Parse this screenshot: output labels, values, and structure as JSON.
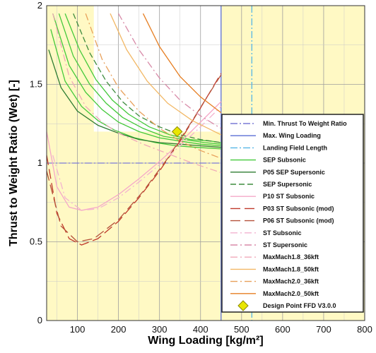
{
  "chart_data": {
    "type": "line",
    "xlabel": "Wing Loading [kg/m²]",
    "ylabel": "Thrust to Weight Ratio (Wet) [-]",
    "xlim": [
      25,
      800
    ],
    "ylim": [
      0,
      2
    ],
    "xticks": [
      "100",
      "200",
      "300",
      "400",
      "500",
      "600",
      "700",
      "800"
    ],
    "yticks": [
      "0",
      "0.5",
      "1",
      "1.5",
      "2"
    ],
    "grid": true,
    "legend_position": "bottom-right",
    "colors": {
      "feasible": "#fff9c4",
      "infeasible": "#ffffff",
      "grid": "#9e9e9e"
    },
    "constraints": {
      "min_tw": 1.0,
      "max_wing_loading": 450,
      "landing_field_length": 525
    },
    "design_point": {
      "x": 343,
      "y": 1.2
    },
    "series": [
      {
        "name": "Min. Thrust To Weight Ratio",
        "color": "#7a7ad6",
        "dash": "10,3,2,3",
        "kind": "h"
      },
      {
        "name": "Max. Wing Loading",
        "color": "#5b6fd4",
        "dash": "",
        "kind": "v"
      },
      {
        "name": "Landing Field Length",
        "color": "#56b6e6",
        "dash": "10,3,2,3",
        "kind": "v"
      },
      {
        "name": "SEP Subsonic",
        "color": "#43c93a",
        "dash": "",
        "kind": "sep",
        "curves": [
          {
            "x": [
              40,
              80,
              120,
              160,
              200,
              250,
              300,
              350,
              400,
              450
            ],
            "y": [
              1.95,
              1.62,
              1.45,
              1.34,
              1.26,
              1.2,
              1.16,
              1.14,
              1.12,
              1.11
            ]
          },
          {
            "x": [
              55,
              90,
              130,
              170,
              210,
              260,
              310,
              360,
              410,
              450
            ],
            "y": [
              1.95,
              1.68,
              1.5,
              1.38,
              1.29,
              1.22,
              1.17,
              1.15,
              1.13,
              1.12
            ]
          },
          {
            "x": [
              70,
              105,
              145,
              185,
              225,
              275,
              325,
              375,
              425,
              450
            ],
            "y": [
              1.95,
              1.72,
              1.53,
              1.4,
              1.31,
              1.23,
              1.18,
              1.15,
              1.14,
              1.13
            ]
          },
          {
            "x": [
              35,
              70,
              110,
              150,
              190,
              240,
              290,
              340,
              390,
              450
            ],
            "y": [
              1.85,
              1.52,
              1.36,
              1.27,
              1.21,
              1.16,
              1.13,
              1.11,
              1.1,
              1.09
            ]
          }
        ]
      },
      {
        "name": "P05 SEP Supersonic",
        "color": "#2e7d32",
        "dash": "",
        "kind": "sep",
        "curves": [
          {
            "x": [
              30,
              60,
              100,
              150,
              200,
              250,
              300,
              350,
              400,
              450
            ],
            "y": [
              1.72,
              1.48,
              1.33,
              1.24,
              1.19,
              1.15,
              1.13,
              1.12,
              1.11,
              1.1
            ]
          }
        ]
      },
      {
        "name": "SEP Supersonic",
        "color": "#3d8b3d",
        "dash": "8,4",
        "kind": "sep",
        "curves": [
          {
            "x": [
              90,
              130,
              170,
              210,
              250,
              300,
              350,
              400,
              450
            ],
            "y": [
              1.95,
              1.7,
              1.52,
              1.39,
              1.3,
              1.23,
              1.18,
              1.15,
              1.13
            ]
          }
        ]
      },
      {
        "name": "P10 ST Subsonic",
        "color": "#f5a8c8",
        "dash": "",
        "kind": "st",
        "curves": [
          {
            "x": [
              25,
              50,
              80,
              110,
              150,
              200,
              250,
              300,
              350,
              400,
              450
            ],
            "y": [
              1.2,
              0.85,
              0.72,
              0.7,
              0.72,
              0.8,
              0.9,
              1.01,
              1.13,
              1.26,
              1.39
            ]
          }
        ]
      },
      {
        "name": "P03 ST Subsonic (mod)",
        "color": "#c0392b",
        "dash": "14,6",
        "kind": "st",
        "curves": [
          {
            "x": [
              25,
              50,
              80,
              110,
              150,
              200,
              250,
              300,
              350,
              400,
              450
            ],
            "y": [
              1.05,
              0.68,
              0.52,
              0.48,
              0.52,
              0.63,
              0.78,
              0.95,
              1.14,
              1.35,
              1.57
            ]
          }
        ]
      },
      {
        "name": "P06 ST Subsonic (mod)",
        "color": "#b5523b",
        "dash": "14,6",
        "kind": "st",
        "curves": [
          {
            "x": [
              25,
              60,
              100,
              140,
              200,
              260,
              320,
              380,
              440,
              450
            ],
            "y": [
              0.95,
              0.6,
              0.5,
              0.52,
              0.64,
              0.82,
              1.03,
              1.27,
              1.52,
              1.56
            ]
          }
        ]
      },
      {
        "name": "ST Subsonic",
        "color": "#f3b3d0",
        "dash": "10,4,2,4",
        "kind": "st",
        "curves": [
          {
            "x": [
              40,
              70,
              110,
              150,
              200,
              250,
              300,
              350,
              400,
              450
            ],
            "y": [
              1.05,
              0.78,
              0.7,
              0.71,
              0.78,
              0.88,
              0.99,
              1.11,
              1.23,
              1.36
            ]
          }
        ]
      },
      {
        "name": "ST Supersonic",
        "color": "#d88aa8",
        "dash": "10,4,2,4",
        "kind": "st",
        "curves": [
          {
            "x": [
              200,
              250,
              300,
              350,
              400,
              450
            ],
            "y": [
              1.95,
              1.72,
              1.54,
              1.4,
              1.3,
              1.22
            ]
          }
        ]
      },
      {
        "name": "MaxMach1.8_36kft",
        "color": "#f0a9b9",
        "dash": "10,4,2,4",
        "kind": "st",
        "curves": [
          {
            "x": [
              40,
              80,
              120,
              160,
              200,
              260,
              320,
              380,
              450
            ],
            "y": [
              1.95,
              1.55,
              1.36,
              1.26,
              1.19,
              1.12,
              1.06,
              1.0,
              0.94
            ]
          }
        ]
      },
      {
        "name": "MaxMach1.8_50kft",
        "color": "#f2b866",
        "dash": "",
        "kind": "st",
        "curves": [
          {
            "x": [
              180,
              220,
              270,
              320,
              380,
              450
            ],
            "y": [
              1.95,
              1.72,
              1.52,
              1.38,
              1.27,
              1.18
            ]
          }
        ]
      },
      {
        "name": "MaxMach2.0_36kft",
        "color": "#e8a05a",
        "dash": "10,4,2,4",
        "kind": "st",
        "curves": [
          {
            "x": [
              120,
              160,
              200,
              250,
              300,
              350,
              400,
              450
            ],
            "y": [
              1.95,
              1.66,
              1.48,
              1.33,
              1.22,
              1.14,
              1.08,
              1.03
            ]
          }
        ]
      },
      {
        "name": "MaxMach2.0_50kft",
        "color": "#e67e22",
        "dash": "",
        "kind": "st",
        "curves": [
          {
            "x": [
              260,
              300,
              350,
              400,
              450
            ],
            "y": [
              1.95,
              1.74,
              1.55,
              1.42,
              1.32
            ]
          }
        ]
      },
      {
        "name": "Design Point FFD V3.0.0",
        "color": "#e9e600",
        "dash": "",
        "kind": "marker"
      }
    ]
  }
}
